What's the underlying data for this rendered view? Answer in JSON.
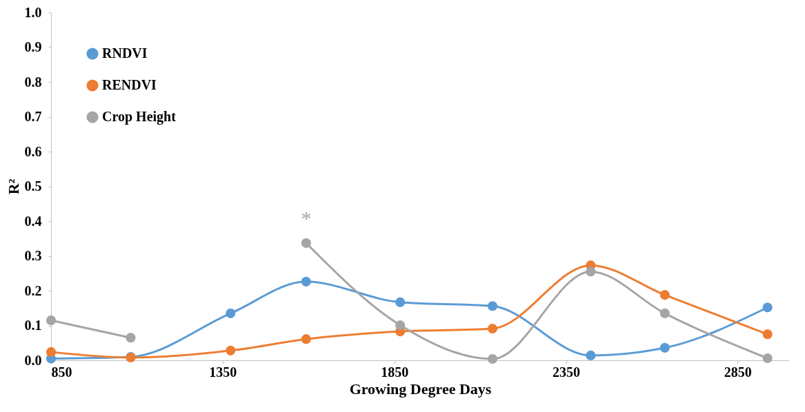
{
  "chart_data": {
    "type": "line",
    "xlabel": "Growing Degree Days",
    "ylabel": "R²",
    "x": [
      850,
      1082,
      1373,
      1593,
      1867,
      2136,
      2422,
      2638,
      2937
    ],
    "series": [
      {
        "name": "RNDVI",
        "color": "#5b9bd5",
        "values": [
          0.005,
          0.01,
          0.135,
          0.226,
          0.167,
          0.156,
          0.014,
          0.036,
          0.152
        ]
      },
      {
        "name": "RENDVI",
        "color": "#ed7d31",
        "values": [
          0.024,
          0.008,
          0.028,
          0.061,
          0.083,
          0.091,
          0.273,
          0.188,
          0.075
        ]
      },
      {
        "name": "Crop Height",
        "color": "#a5a5a5",
        "values": [
          0.115,
          0.065,
          null,
          0.337,
          0.101,
          0.004,
          0.255,
          0.135,
          0.006
        ]
      }
    ],
    "xlim": [
      850,
      3000
    ],
    "xticks": [
      850,
      1350,
      1850,
      2350,
      2850
    ],
    "ylim": [
      0,
      1
    ],
    "yticks": [
      {
        "value": 0,
        "label": "0.0"
      },
      {
        "value": 0.1,
        "label": "0.1"
      },
      {
        "value": 0.2,
        "label": "0.2"
      },
      {
        "value": 0.3,
        "label": "0.3"
      },
      {
        "value": 0.4,
        "label": "0.4"
      },
      {
        "value": 0.5,
        "label": "0.5"
      },
      {
        "value": 0.6,
        "label": "0.6"
      },
      {
        "value": 0.7,
        "label": "0.7"
      },
      {
        "value": 0.8,
        "label": "0.8"
      },
      {
        "value": 0.9,
        "label": "0.9"
      },
      {
        "value": 1,
        "label": "1.0"
      }
    ],
    "annotations": [
      "*"
    ],
    "legend": "top left",
    "grid": false,
    "marker": "circle",
    "line_style": "solid"
  }
}
